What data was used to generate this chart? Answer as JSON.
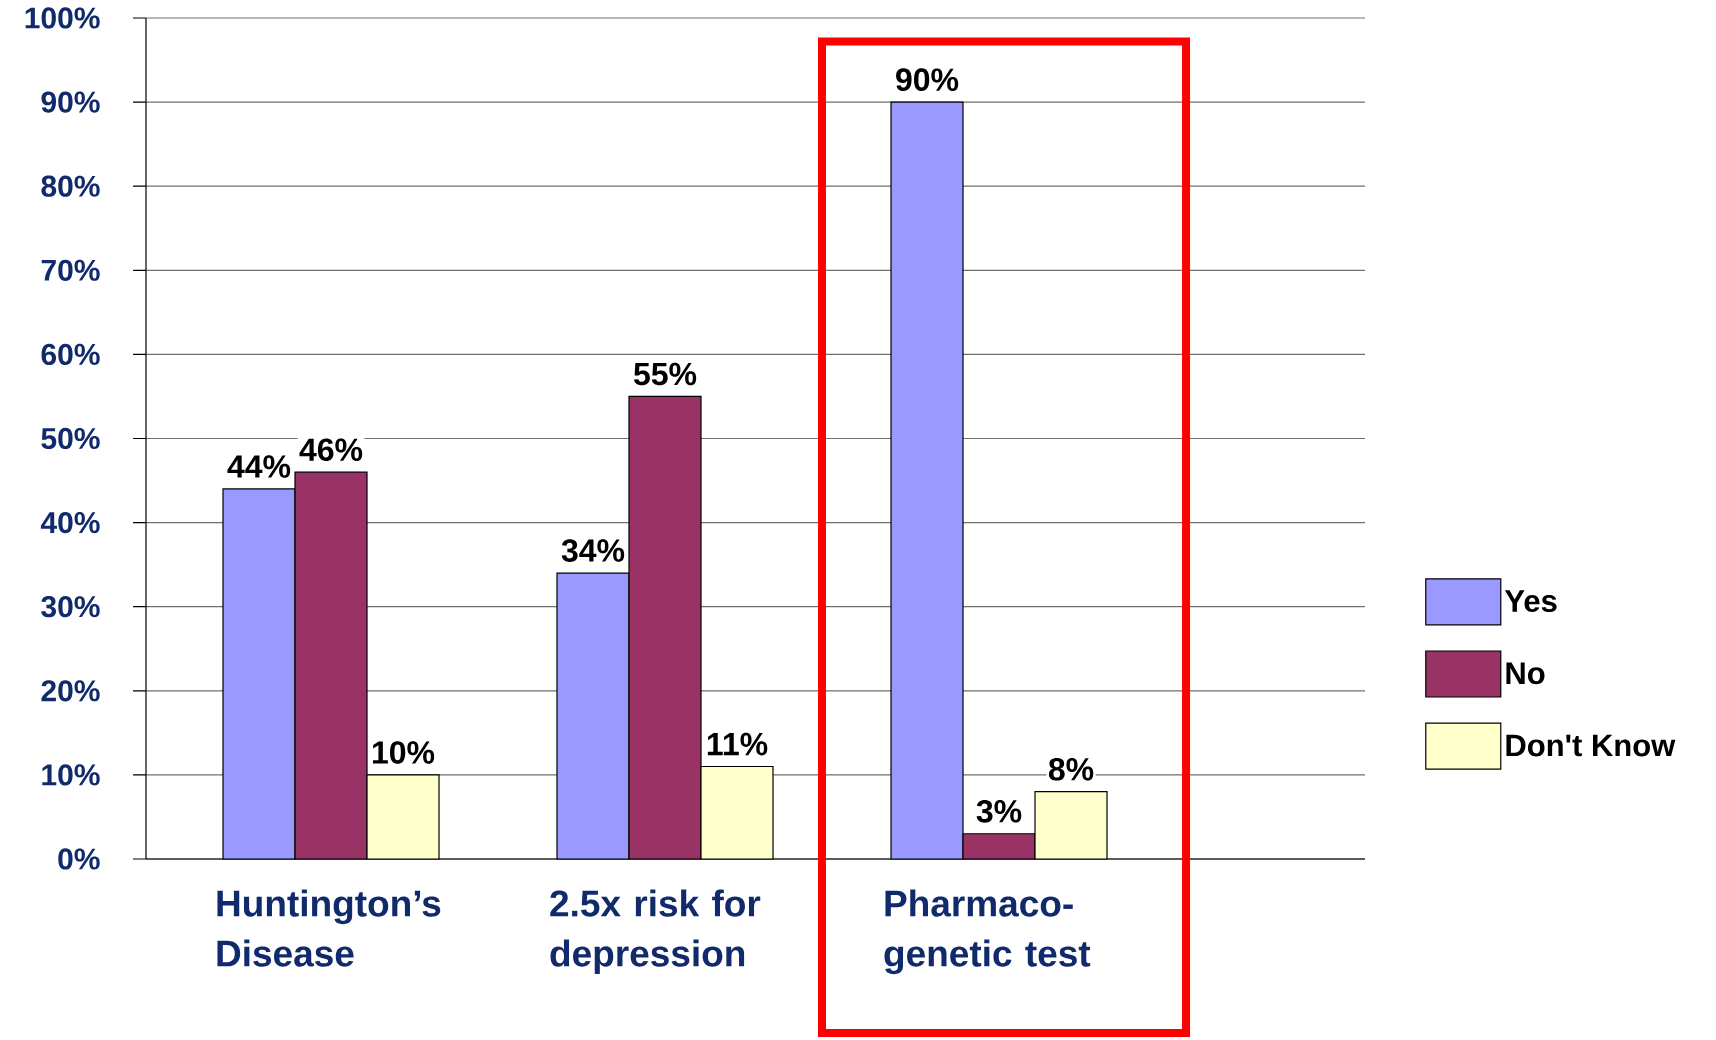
{
  "chart_data": {
    "type": "bar",
    "categories": [
      "Huntington’s Disease",
      "2.5x risk for depression",
      "Pharmaco-genetic test"
    ],
    "series": [
      {
        "name": "Yes",
        "color": "#9999ff",
        "values": [
          44,
          34,
          90
        ],
        "value_labels": [
          "44%",
          "34%",
          "90%"
        ]
      },
      {
        "name": "No",
        "color": "#993366",
        "values": [
          46,
          55,
          3
        ],
        "value_labels": [
          "46%",
          "55%",
          "3%"
        ]
      },
      {
        "name": "Don't Know",
        "color": "#ffffcc",
        "values": [
          10,
          11,
          8
        ],
        "value_labels": [
          "10%",
          "11%",
          "8%"
        ]
      }
    ],
    "ylim": [
      0,
      100
    ],
    "yticks": [
      {
        "value": 0,
        "label": "0%"
      },
      {
        "value": 10,
        "label": "10%"
      },
      {
        "value": 20,
        "label": "20%"
      },
      {
        "value": 30,
        "label": "30%"
      },
      {
        "value": 40,
        "label": "40%"
      },
      {
        "value": 50,
        "label": "50%"
      },
      {
        "value": 60,
        "label": "60%"
      },
      {
        "value": 70,
        "label": "70%"
      },
      {
        "value": 80,
        "label": "80%"
      },
      {
        "value": 90,
        "label": "90%"
      },
      {
        "value": 100,
        "label": "100%"
      }
    ],
    "grid": "y",
    "legend": "right"
  }
}
